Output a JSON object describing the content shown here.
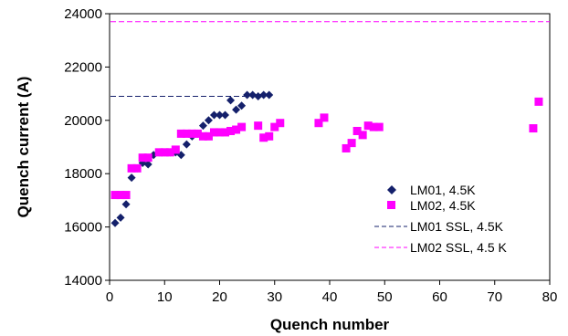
{
  "chart_data": {
    "type": "scatter",
    "title": "",
    "xlabel": "Quench number",
    "ylabel": "Quench current (A)",
    "xlim": [
      0,
      80
    ],
    "ylim": [
      14000,
      24000
    ],
    "x_ticks": [
      0,
      10,
      20,
      30,
      40,
      50,
      60,
      70,
      80
    ],
    "y_ticks": [
      14000,
      16000,
      18000,
      20000,
      22000,
      24000
    ],
    "grid": false,
    "legend_position": "lower-right",
    "series": [
      {
        "name": "LM01, 4.5K",
        "kind": "points",
        "marker": "diamond",
        "color": "#14206b",
        "points": [
          [
            1,
            16150
          ],
          [
            2,
            16350
          ],
          [
            3,
            16850
          ],
          [
            4,
            17850
          ],
          [
            5,
            18200
          ],
          [
            6,
            18400
          ],
          [
            7,
            18350
          ],
          [
            8,
            18700
          ],
          [
            9,
            18800
          ],
          [
            10,
            18800
          ],
          [
            11,
            18800
          ],
          [
            12,
            18800
          ],
          [
            13,
            18700
          ],
          [
            14,
            19100
          ],
          [
            15,
            19400
          ],
          [
            16,
            19500
          ],
          [
            17,
            19800
          ],
          [
            18,
            20000
          ],
          [
            19,
            20200
          ],
          [
            20,
            20200
          ],
          [
            21,
            20200
          ],
          [
            22,
            20750
          ],
          [
            23,
            20400
          ],
          [
            24,
            20550
          ],
          [
            25,
            20950
          ],
          [
            26,
            20950
          ],
          [
            27,
            20900
          ],
          [
            28,
            20950
          ],
          [
            29,
            20950
          ]
        ]
      },
      {
        "name": "LM02, 4.5K",
        "kind": "points",
        "marker": "square",
        "color": "#ff00ff",
        "points": [
          [
            1,
            17200
          ],
          [
            2,
            17200
          ],
          [
            3,
            17200
          ],
          [
            4,
            18200
          ],
          [
            5,
            18200
          ],
          [
            6,
            18600
          ],
          [
            7,
            18600
          ],
          [
            9,
            18800
          ],
          [
            10,
            18800
          ],
          [
            11,
            18800
          ],
          [
            12,
            18900
          ],
          [
            13,
            19500
          ],
          [
            14,
            19500
          ],
          [
            15,
            19500
          ],
          [
            16,
            19500
          ],
          [
            17,
            19400
          ],
          [
            18,
            19400
          ],
          [
            19,
            19550
          ],
          [
            20,
            19550
          ],
          [
            21,
            19550
          ],
          [
            22,
            19600
          ],
          [
            23,
            19650
          ],
          [
            24,
            19750
          ],
          [
            27,
            19800
          ],
          [
            28,
            19350
          ],
          [
            29,
            19400
          ],
          [
            30,
            19750
          ],
          [
            31,
            19900
          ],
          [
            38,
            19900
          ],
          [
            39,
            20100
          ],
          [
            43,
            18950
          ],
          [
            44,
            19150
          ],
          [
            45,
            19600
          ],
          [
            46,
            19450
          ],
          [
            47,
            19800
          ],
          [
            48,
            19750
          ],
          [
            49,
            19750
          ],
          [
            77,
            19700
          ],
          [
            78,
            20700
          ]
        ]
      },
      {
        "name": "LM01 SSL, 4.5K",
        "kind": "hline",
        "dash": true,
        "color": "#14206b",
        "x_range": [
          0,
          29
        ],
        "y": 20900
      },
      {
        "name": "LM02 SSL, 4.5 K",
        "kind": "hline",
        "dash": true,
        "color": "#ff00ff",
        "x_range": [
          0,
          80
        ],
        "y": 23700
      }
    ]
  }
}
